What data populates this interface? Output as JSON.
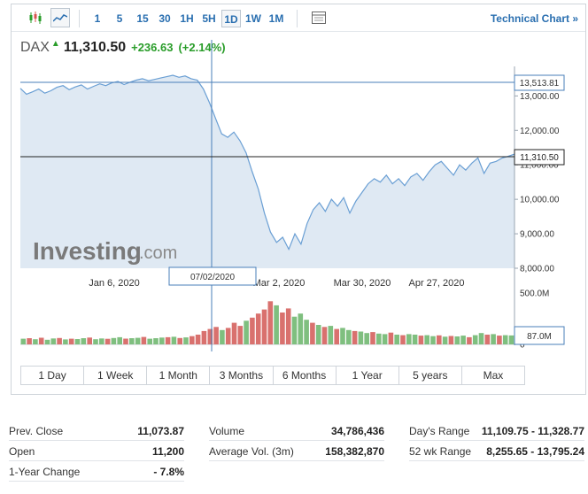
{
  "toolbar": {
    "icons": [
      "candlestick-icon",
      "area-chart-icon"
    ],
    "timeframes": [
      "1",
      "5",
      "15",
      "30",
      "1H",
      "5H",
      "1D",
      "1W",
      "1M"
    ],
    "active_timeframe": "1D",
    "settings_icon": "table-icon",
    "technical_chart_label": "Technical Chart »"
  },
  "quote": {
    "symbol": "DAX",
    "direction": "up",
    "price": "11,310.50",
    "change": "+236.63",
    "change_pct": "(+2.14%)"
  },
  "watermark": {
    "brand": "Investing",
    "suffix": ".com"
  },
  "crosshair": {
    "date_label": "07/02/2020",
    "price_label": "13,513.81",
    "volume_label": "87.0M"
  },
  "last_price_label": "11,310.50",
  "colors": {
    "line": "#6a9fd4",
    "area": "#dfe9f3",
    "up_volume": "#7fbf7f",
    "down_volume": "#d9716e",
    "link": "#2a6fb0",
    "positive": "#2a9d2a"
  },
  "chart_data": {
    "type": "area",
    "title": "",
    "x_ticks": [
      "Jan 6, 2020",
      "Mar 2, 2020",
      "Mar 30, 2020",
      "Apr 27, 2020"
    ],
    "y_ticks": [
      "13,000.00",
      "12,000.00",
      "11,000.00",
      "10,000.00",
      "9,000.00",
      "8,000.00"
    ],
    "ylim": [
      8000,
      13600
    ],
    "volume_ticks": [
      "500.0M",
      "0"
    ],
    "volume_ylim": [
      0,
      500
    ],
    "series": [
      {
        "values": [
          13220,
          13050,
          13120,
          13200,
          13080,
          13150,
          13250,
          13300,
          13180,
          13260,
          13320,
          13200,
          13280,
          13350,
          13300,
          13380,
          13420,
          13330,
          13400,
          13460,
          13500,
          13440,
          13480,
          13520,
          13560,
          13600,
          13540,
          13580,
          13500,
          13460,
          13200,
          12800,
          12350,
          11900,
          11800,
          11950,
          11700,
          11350,
          10800,
          10300,
          9600,
          9050,
          8750,
          8900,
          8550,
          9000,
          8700,
          9300,
          9700,
          9900,
          9650,
          10000,
          9800,
          10050,
          9600,
          9950,
          10200,
          10450,
          10600,
          10500,
          10700,
          10450,
          10600,
          10400,
          10650,
          10750,
          10550,
          10800,
          11000,
          11100,
          10900,
          10700,
          11000,
          10850,
          11050,
          11200,
          10750,
          11050,
          11100,
          11200,
          11250,
          11310
        ]
      }
    ],
    "volume": [
      {
        "v": 55,
        "up": true
      },
      {
        "v": 60,
        "up": false
      },
      {
        "v": 50,
        "up": true
      },
      {
        "v": 65,
        "up": false
      },
      {
        "v": 45,
        "up": true
      },
      {
        "v": 58,
        "up": true
      },
      {
        "v": 62,
        "up": false
      },
      {
        "v": 48,
        "up": true
      },
      {
        "v": 55,
        "up": false
      },
      {
        "v": 52,
        "up": true
      },
      {
        "v": 60,
        "up": true
      },
      {
        "v": 66,
        "up": false
      },
      {
        "v": 50,
        "up": true
      },
      {
        "v": 58,
        "up": true
      },
      {
        "v": 54,
        "up": false
      },
      {
        "v": 62,
        "up": true
      },
      {
        "v": 70,
        "up": true
      },
      {
        "v": 56,
        "up": false
      },
      {
        "v": 60,
        "up": true
      },
      {
        "v": 64,
        "up": true
      },
      {
        "v": 72,
        "up": false
      },
      {
        "v": 55,
        "up": true
      },
      {
        "v": 60,
        "up": true
      },
      {
        "v": 66,
        "up": true
      },
      {
        "v": 70,
        "up": false
      },
      {
        "v": 74,
        "up": true
      },
      {
        "v": 62,
        "up": false
      },
      {
        "v": 68,
        "up": true
      },
      {
        "v": 80,
        "up": false
      },
      {
        "v": 95,
        "up": false
      },
      {
        "v": 130,
        "up": false
      },
      {
        "v": 150,
        "up": false
      },
      {
        "v": 170,
        "up": false
      },
      {
        "v": 140,
        "up": true
      },
      {
        "v": 160,
        "up": false
      },
      {
        "v": 210,
        "up": false
      },
      {
        "v": 180,
        "up": false
      },
      {
        "v": 230,
        "up": true
      },
      {
        "v": 260,
        "up": false
      },
      {
        "v": 300,
        "up": false
      },
      {
        "v": 340,
        "up": false
      },
      {
        "v": 420,
        "up": false
      },
      {
        "v": 380,
        "up": true
      },
      {
        "v": 310,
        "up": false
      },
      {
        "v": 350,
        "up": false
      },
      {
        "v": 270,
        "up": true
      },
      {
        "v": 300,
        "up": true
      },
      {
        "v": 240,
        "up": true
      },
      {
        "v": 210,
        "up": false
      },
      {
        "v": 190,
        "up": true
      },
      {
        "v": 170,
        "up": false
      },
      {
        "v": 180,
        "up": true
      },
      {
        "v": 150,
        "up": false
      },
      {
        "v": 160,
        "up": true
      },
      {
        "v": 140,
        "up": true
      },
      {
        "v": 130,
        "up": false
      },
      {
        "v": 125,
        "up": true
      },
      {
        "v": 110,
        "up": true
      },
      {
        "v": 120,
        "up": false
      },
      {
        "v": 105,
        "up": true
      },
      {
        "v": 100,
        "up": true
      },
      {
        "v": 115,
        "up": false
      },
      {
        "v": 95,
        "up": true
      },
      {
        "v": 90,
        "up": false
      },
      {
        "v": 100,
        "up": true
      },
      {
        "v": 95,
        "up": true
      },
      {
        "v": 85,
        "up": false
      },
      {
        "v": 90,
        "up": true
      },
      {
        "v": 80,
        "up": true
      },
      {
        "v": 88,
        "up": false
      },
      {
        "v": 75,
        "up": true
      },
      {
        "v": 82,
        "up": false
      },
      {
        "v": 78,
        "up": true
      },
      {
        "v": 85,
        "up": true
      },
      {
        "v": 70,
        "up": false
      },
      {
        "v": 90,
        "up": true
      },
      {
        "v": 110,
        "up": true
      },
      {
        "v": 95,
        "up": false
      },
      {
        "v": 100,
        "up": true
      },
      {
        "v": 85,
        "up": false
      },
      {
        "v": 90,
        "up": true
      },
      {
        "v": 87,
        "up": true
      }
    ]
  },
  "ranges": [
    "1 Day",
    "1 Week",
    "1 Month",
    "3 Months",
    "6 Months",
    "1 Year",
    "5 years",
    "Max"
  ],
  "stats": {
    "col1": [
      {
        "label": "Prev. Close",
        "value": "11,073.87"
      },
      {
        "label": "Open",
        "value": "11,200"
      },
      {
        "label": "1-Year Change",
        "value": "- 7.8%"
      }
    ],
    "col2": [
      {
        "label": "Volume",
        "value": "34,786,436"
      },
      {
        "label": "Average Vol. (3m)",
        "value": "158,382,870"
      }
    ],
    "col3": [
      {
        "label": "Day's Range",
        "value": "11,109.75 - 11,328.77"
      },
      {
        "label": "52 wk Range",
        "value": "8,255.65 - 13,795.24"
      }
    ]
  }
}
